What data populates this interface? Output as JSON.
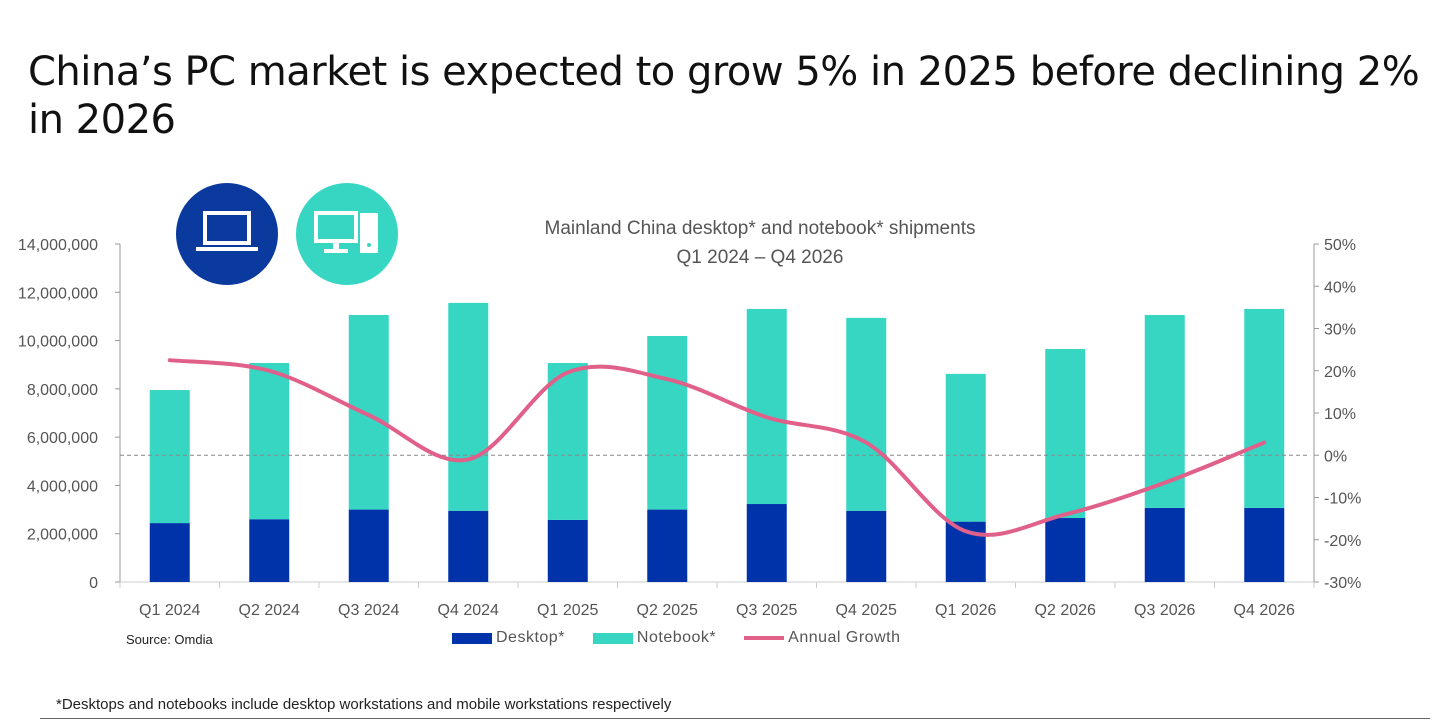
{
  "title": "China’s PC market is expected to grow 5% in 2025 before declining 2% in 2026",
  "source": "Source: Omdia",
  "footnote": "*Desktops and notebooks include desktop workstations and mobile workstations respectively",
  "icons": [
    "laptop-icon",
    "desktop-computer-icon"
  ],
  "chart_data": {
    "type": "bar",
    "stacked": true,
    "title": "Mainland China desktop* and notebook* shipments",
    "subtitle": "Q1 2024 – Q4 2026",
    "categories": [
      "Q1 2024",
      "Q2 2024",
      "Q3 2024",
      "Q4 2024",
      "Q1 2025",
      "Q2 2025",
      "Q3 2025",
      "Q4 2025",
      "Q1 2026",
      "Q2 2026",
      "Q3 2026",
      "Q4 2026"
    ],
    "series": [
      {
        "name": "Desktop*",
        "type": "bar",
        "axis": "left",
        "color": "#0033AA",
        "values": [
          2440000,
          2600000,
          3000000,
          2950000,
          2570000,
          3000000,
          3230000,
          2950000,
          2500000,
          2650000,
          3070000,
          3070000
        ]
      },
      {
        "name": "Notebook*",
        "type": "bar",
        "axis": "left",
        "color": "#36D6C3",
        "values": [
          5510000,
          6470000,
          8060000,
          8610000,
          6500000,
          7190000,
          8080000,
          7990000,
          6120000,
          7000000,
          7990000,
          8240000
        ]
      },
      {
        "name": "Annual Growth",
        "type": "line",
        "axis": "right",
        "color": "#E0608A",
        "values": [
          22.5,
          20,
          9.5,
          -1,
          19.6,
          18,
          9,
          3,
          -18,
          -14,
          -6.5,
          3
        ]
      }
    ],
    "yleft": {
      "lim": [
        0,
        14000000
      ],
      "ticks": [
        0,
        2000000,
        4000000,
        6000000,
        8000000,
        10000000,
        12000000,
        14000000
      ],
      "tick_labels": [
        "0",
        "2,000,000",
        "4,000,000",
        "6,000,000",
        "8,000,000",
        "10,000,000",
        "12,000,000",
        "14,000,000"
      ]
    },
    "yright": {
      "lim": [
        -30,
        50
      ],
      "ticks": [
        -30,
        -20,
        -10,
        0,
        10,
        20,
        30,
        40,
        50
      ],
      "tick_labels": [
        "-30%",
        "-20%",
        "-10%",
        "0%",
        "10%",
        "20%",
        "30%",
        "40%",
        "50%"
      ]
    },
    "zero_reference_line": "dashed",
    "grid": false,
    "legend": "bottom"
  }
}
